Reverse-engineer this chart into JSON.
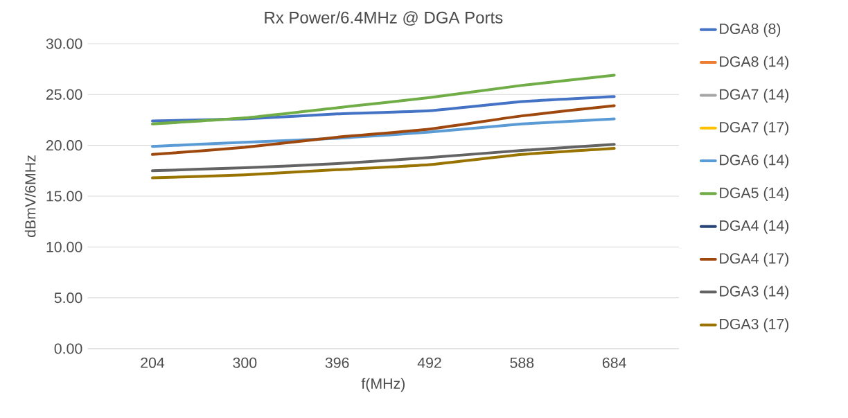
{
  "chart_data": {
    "type": "line",
    "title": "Rx Power/6.4MHz @ DGA Ports",
    "xlabel": "f(MHz)",
    "ylabel": "dBmV/6MHz",
    "categories": [
      "204",
      "300",
      "396",
      "492",
      "588",
      "684"
    ],
    "ylim": [
      0,
      30
    ],
    "yticks": [
      {
        "value": 0,
        "label": "0.00"
      },
      {
        "value": 5,
        "label": "5.00"
      },
      {
        "value": 10,
        "label": "10.00"
      },
      {
        "value": 15,
        "label": "15.00"
      },
      {
        "value": 20,
        "label": "20.00"
      },
      {
        "value": 25,
        "label": "25.00"
      },
      {
        "value": 30,
        "label": "30.00"
      }
    ],
    "grid": "y",
    "legend": "right",
    "marker": "none",
    "line_style": "solid",
    "series": [
      {
        "name": "DGA8 (8)",
        "color": "#4472c4",
        "values": [
          22.4,
          22.6,
          23.1,
          23.4,
          24.3,
          24.8
        ]
      },
      {
        "name": "DGA8 (14)",
        "color": "#ed7d31",
        "values": [
          null,
          null,
          null,
          null,
          null,
          null
        ]
      },
      {
        "name": "DGA7 (14)",
        "color": "#a5a5a5",
        "values": [
          null,
          null,
          null,
          null,
          null,
          null
        ]
      },
      {
        "name": "DGA7 (17)",
        "color": "#ffc000",
        "values": [
          null,
          null,
          null,
          null,
          null,
          null
        ]
      },
      {
        "name": "DGA6 (14)",
        "color": "#5b9bd5",
        "values": [
          19.9,
          20.3,
          20.7,
          21.3,
          22.1,
          22.6
        ]
      },
      {
        "name": "DGA5 (14)",
        "color": "#70ad47",
        "values": [
          22.1,
          22.7,
          23.7,
          24.7,
          25.9,
          26.9
        ]
      },
      {
        "name": "DGA4 (14)",
        "color": "#264478",
        "values": [
          null,
          null,
          null,
          null,
          null,
          null
        ]
      },
      {
        "name": "DGA4 (17)",
        "color": "#9e480e",
        "values": [
          19.1,
          19.8,
          20.8,
          21.6,
          22.9,
          23.9
        ]
      },
      {
        "name": "DGA3 (14)",
        "color": "#636363",
        "values": [
          17.5,
          17.8,
          18.2,
          18.8,
          19.5,
          20.1
        ]
      },
      {
        "name": "DGA3 (17)",
        "color": "#997300",
        "values": [
          16.8,
          17.1,
          17.6,
          18.1,
          19.1,
          19.7
        ]
      }
    ]
  }
}
